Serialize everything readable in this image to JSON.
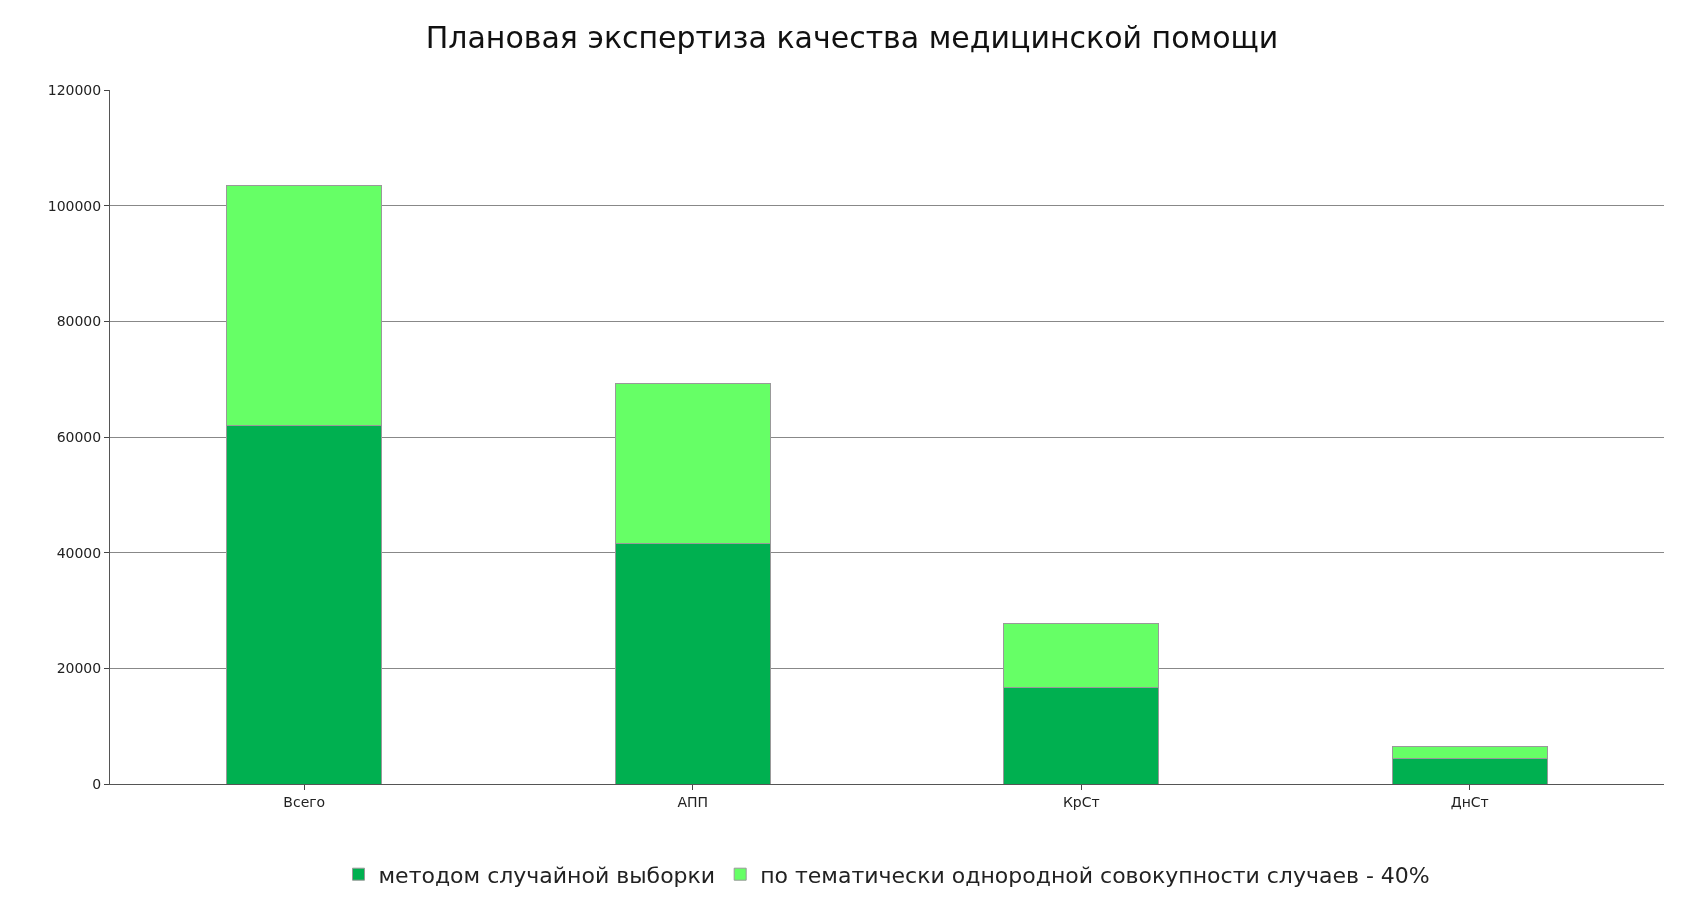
{
  "chart_data": {
    "type": "bar",
    "stacked": true,
    "title": "Плановая экспертиза качества медицинской помощи",
    "categories": [
      "Всего",
      "АПП",
      "КрСт",
      "ДнСт"
    ],
    "series": [
      {
        "name": "методом случайной выборки",
        "color": "#00b050",
        "values": [
          62000,
          41500,
          16700,
          4400
        ]
      },
      {
        "name": "по тематически однородной совокупности случаев - 40%",
        "color": "#66ff66",
        "values": [
          41500,
          27700,
          11000,
          2000
        ]
      }
    ],
    "ylim": [
      0,
      120000
    ],
    "yticks": [
      0,
      20000,
      40000,
      60000,
      80000,
      100000,
      120000
    ],
    "grid": "y",
    "legend": "bottom"
  }
}
